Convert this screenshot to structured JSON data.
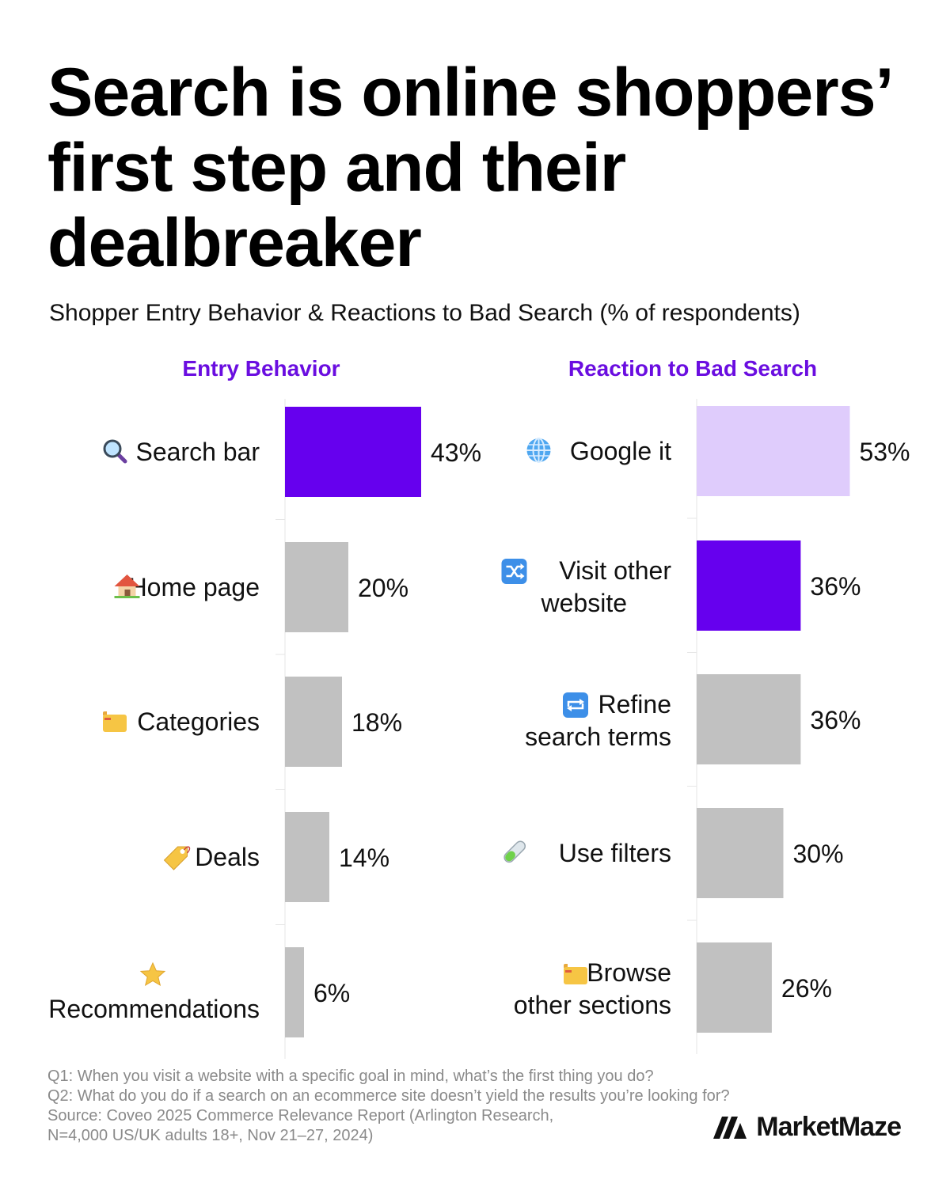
{
  "title": "Search is online shoppers’ first step and their dealbreaker",
  "subtitle": "Shopper Entry Behavior & Reactions to Bad Search (% of respondents)",
  "colors": {
    "accent": "#6600EE",
    "light_accent": "#DFCCFC",
    "neutral": "#C1C1C1",
    "panel_title": "#6A0DE0"
  },
  "chart_data": [
    {
      "type": "bar",
      "orientation": "horizontal",
      "title": "Entry Behavior",
      "categories": [
        {
          "label": "Search bar",
          "icon": "magnifying-glass-icon",
          "value": 43,
          "label_text": "43%",
          "color": "#6600EE"
        },
        {
          "label": "Home page",
          "icon": "house-icon",
          "value": 20,
          "label_text": "20%",
          "color": "#C1C1C1"
        },
        {
          "label": "Categories",
          "icon": "folder-icon",
          "value": 18,
          "label_text": "18%",
          "color": "#C1C1C1"
        },
        {
          "label": "Deals",
          "icon": "price-tag-icon",
          "value": 14,
          "label_text": "14%",
          "color": "#C1C1C1"
        },
        {
          "label": "Recommendations",
          "icon": "star-icon",
          "value": 6,
          "label_text": "6%",
          "color": "#C1C1C1"
        }
      ],
      "unit": "%",
      "grid": false
    },
    {
      "type": "bar",
      "orientation": "horizontal",
      "title": "Reaction to Bad Search",
      "categories": [
        {
          "label": "Google it",
          "icon": "globe-icon",
          "value": 53,
          "label_text": "53%",
          "color": "#DFCCFC"
        },
        {
          "label": "Visit other website",
          "icon": "shuffle-icon",
          "value": 36,
          "label_text": "36%",
          "color": "#6600EE"
        },
        {
          "label": "Refine search terms",
          "icon": "repeat-icon",
          "value": 36,
          "label_text": "36%",
          "color": "#C1C1C1"
        },
        {
          "label": "Use filters",
          "icon": "test-tube-icon",
          "value": 30,
          "label_text": "30%",
          "color": "#C1C1C1"
        },
        {
          "label": "Browse other sections",
          "icon": "folder-icon",
          "value": 26,
          "label_text": "26%",
          "color": "#C1C1C1"
        }
      ],
      "unit": "%",
      "grid": false
    }
  ],
  "footer": {
    "q1": "Q1: When you visit a website with a specific goal in mind, what’s the first thing you do?",
    "q2": "Q2: What do you do if a search on an ecommerce site doesn’t yield the results you’re looking for?",
    "source_line1": "Source: Coveo 2025 Commerce Relevance Report (Arlington Research,",
    "source_line2": "N=4,000 US/UK adults 18+, Nov 21–27, 2024)"
  },
  "brand": {
    "name": "MarketMaze",
    "logo_icon": "marketmaze-logo-icon"
  }
}
